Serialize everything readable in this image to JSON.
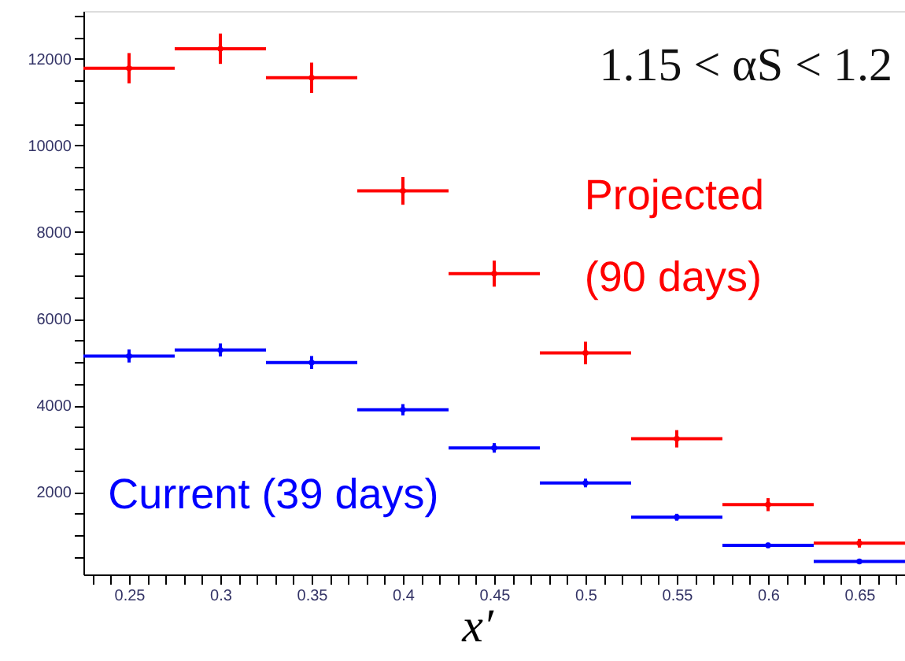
{
  "chart_data": {
    "type": "scatter",
    "xlabel": "x′",
    "annotations": [
      "1.15 < αS < 1.2"
    ],
    "x": [
      0.25,
      0.3,
      0.35,
      0.4,
      0.45,
      0.5,
      0.55,
      0.6,
      0.65
    ],
    "series": [
      {
        "name": "Projected\n(90 days)",
        "color": "#ff0000",
        "values": [
          11780,
          12230,
          11560,
          8950,
          7040,
          5210,
          3230,
          1710,
          820
        ],
        "errors": [
          350,
          350,
          350,
          320,
          300,
          260,
          200,
          150,
          100
        ],
        "xerrors": [
          0.025,
          0.025,
          0.025,
          0.025,
          0.025,
          0.025,
          0.025,
          0.025,
          0.025
        ]
      },
      {
        "name": "Current (39 days)",
        "color": "#0000ff",
        "values": [
          5140,
          5280,
          4990,
          3900,
          3020,
          2210,
          1420,
          770,
          400
        ],
        "errors": [
          150,
          150,
          150,
          130,
          110,
          100,
          80,
          60,
          50
        ],
        "xerrors": [
          0.025,
          0.025,
          0.025,
          0.025,
          0.025,
          0.025,
          0.025,
          0.025,
          0.025
        ]
      }
    ],
    "marker": "circle",
    "legend": false,
    "grid": false,
    "xlim": [
      0.225,
      0.675
    ],
    "ylim": [
      100,
      13100
    ],
    "xticks": [
      {
        "value": 0.23,
        "label": null
      },
      {
        "value": 0.24,
        "label": null
      },
      0.25,
      {
        "value": 0.26,
        "label": null
      },
      {
        "value": 0.27,
        "label": null
      },
      {
        "value": 0.28,
        "label": null
      },
      {
        "value": 0.29,
        "label": null
      },
      0.3,
      {
        "value": 0.31,
        "label": null
      },
      {
        "value": 0.32,
        "label": null
      },
      {
        "value": 0.33,
        "label": null
      },
      {
        "value": 0.34,
        "label": null
      },
      0.35,
      {
        "value": 0.36,
        "label": null
      },
      {
        "value": 0.37,
        "label": null
      },
      {
        "value": 0.38,
        "label": null
      },
      {
        "value": 0.39,
        "label": null
      },
      0.4,
      {
        "value": 0.41,
        "label": null
      },
      {
        "value": 0.42,
        "label": null
      },
      {
        "value": 0.43,
        "label": null
      },
      {
        "value": 0.44,
        "label": null
      },
      0.45,
      {
        "value": 0.46,
        "label": null
      },
      {
        "value": 0.47,
        "label": null
      },
      {
        "value": 0.48,
        "label": null
      },
      {
        "value": 0.49,
        "label": null
      },
      0.5,
      {
        "value": 0.51,
        "label": null
      },
      {
        "value": 0.52,
        "label": null
      },
      {
        "value": 0.53,
        "label": null
      },
      {
        "value": 0.54,
        "label": null
      },
      0.55,
      {
        "value": 0.56,
        "label": null
      },
      {
        "value": 0.57,
        "label": null
      },
      {
        "value": 0.58,
        "label": null
      },
      {
        "value": 0.59,
        "label": null
      },
      0.6,
      {
        "value": 0.61,
        "label": null
      },
      {
        "value": 0.62,
        "label": null
      },
      {
        "value": 0.63,
        "label": null
      },
      {
        "value": 0.64,
        "label": null
      },
      0.65,
      {
        "value": 0.66,
        "label": null
      },
      {
        "value": 0.67,
        "label": null
      }
    ],
    "yticks": [
      {
        "value": 500,
        "label": null
      },
      {
        "value": 1000,
        "label": null
      },
      {
        "value": 1500,
        "label": null
      },
      2000,
      {
        "value": 2500,
        "label": null
      },
      {
        "value": 3000,
        "label": null
      },
      {
        "value": 3500,
        "label": null
      },
      4000,
      {
        "value": 4500,
        "label": null
      },
      {
        "value": 5000,
        "label": null
      },
      {
        "value": 5500,
        "label": null
      },
      6000,
      {
        "value": 6500,
        "label": null
      },
      {
        "value": 7000,
        "label": null
      },
      {
        "value": 7500,
        "label": null
      },
      8000,
      {
        "value": 8500,
        "label": null
      },
      {
        "value": 9000,
        "label": null
      },
      {
        "value": 9500,
        "label": null
      },
      10000,
      {
        "value": 10500,
        "label": null
      },
      {
        "value": 11000,
        "label": null
      },
      {
        "value": 11500,
        "label": null
      },
      12000,
      {
        "value": 12500,
        "label": null
      },
      {
        "value": 13000,
        "label": null
      }
    ]
  }
}
